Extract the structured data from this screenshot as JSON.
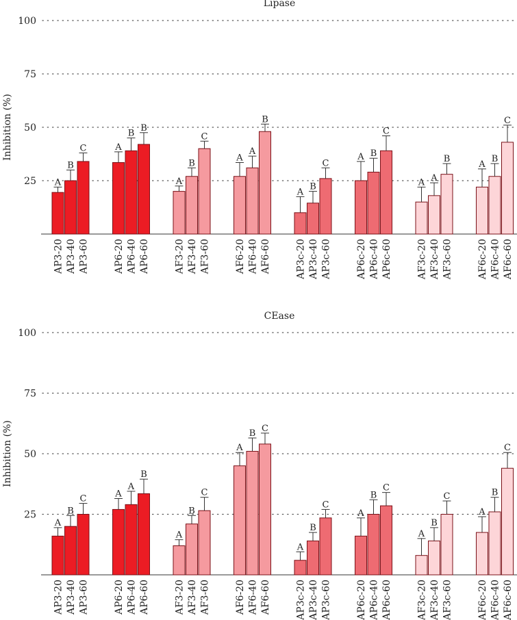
{
  "colors": {
    "g1": "#ec1c24",
    "g2": "#ec1c24",
    "g3": "#f59a9f",
    "g4": "#f59a9f",
    "g5": "#ee6b72",
    "g6": "#ee6b72",
    "g7": "#fdd5d8",
    "g8": "#fdd5d8",
    "edge": "#7a1017",
    "grid": "#555555"
  },
  "chart_data": [
    {
      "type": "bar",
      "title": "Lipase",
      "ylabel": "Inhibition (%)",
      "ylim": [
        0,
        100
      ],
      "yticks": [
        25,
        50,
        75,
        100
      ],
      "groups": [
        "AP3",
        "AP6",
        "AF3",
        "AF6",
        "AP3c",
        "AP6c",
        "AF3c",
        "AF6c"
      ],
      "categories": [
        "AP3-20",
        "AP3-40",
        "AP3-60",
        "AP6-20",
        "AP6-40",
        "AP6-60",
        "AF3-20",
        "AF3-40",
        "AF3-60",
        "AF6-20",
        "AF6-40",
        "AF6-60",
        "AP3c-20",
        "AP3c-40",
        "AP3c-60",
        "AP6c-20",
        "AP6c-40",
        "AP6c-60",
        "AF3c-20",
        "AF3c-40",
        "AF3c-60",
        "AF6c-20",
        "AF6c-40",
        "AF6c-60"
      ],
      "values": [
        19.5,
        25,
        34,
        33.5,
        39,
        42,
        20,
        27,
        40,
        27,
        31,
        48,
        10,
        14.5,
        26,
        25,
        29,
        39,
        15,
        18,
        28,
        22,
        27,
        43
      ],
      "errors": [
        2.5,
        5,
        4,
        5,
        6,
        5.5,
        2.5,
        4,
        3.5,
        6.5,
        5.5,
        3.5,
        7.5,
        5.5,
        5,
        9,
        6.5,
        7,
        7,
        6,
        5,
        8.5,
        6,
        8
      ],
      "letters": [
        "A",
        "B",
        "C",
        "A",
        "B",
        "B",
        "A",
        "B",
        "C",
        "A",
        "A",
        "B",
        "A",
        "B",
        "C",
        "A",
        "B",
        "C",
        "A",
        "A",
        "B",
        "A",
        "B",
        "C"
      ]
    },
    {
      "type": "bar",
      "title": "CEase",
      "ylabel": "Inhibition (%)",
      "ylim": [
        0,
        100
      ],
      "yticks": [
        25,
        50,
        75,
        100
      ],
      "groups": [
        "AP3",
        "AP6",
        "AF3",
        "AF6",
        "AP3c",
        "AP6c",
        "AF3c",
        "AF6c"
      ],
      "categories": [
        "AP3-20",
        "AP3-40",
        "AP3-60",
        "AP6-20",
        "AP6-40",
        "AP6-60",
        "AF3-20",
        "AF3-40",
        "AF3-60",
        "AF6-20",
        "AF6-40",
        "AF6-60",
        "AP3c-20",
        "AP3c-40",
        "AP3c-60",
        "AP6c-20",
        "AP6c-40",
        "AP6c-60",
        "AF3c-20",
        "AF3c-40",
        "AF3c-60",
        "AF6c-20",
        "AF6c-40",
        "AF6c-60"
      ],
      "values": [
        16,
        20,
        25,
        27,
        29,
        33.5,
        12,
        21,
        26.5,
        45,
        51,
        54,
        6,
        14,
        23.5,
        16,
        25,
        28.5,
        8,
        14,
        25,
        17.5,
        26,
        44
      ],
      "errors": [
        3.5,
        4.5,
        4.5,
        4.5,
        5.5,
        6,
        2.5,
        3.5,
        5.5,
        5.5,
        5.5,
        4.5,
        3.5,
        3.5,
        3.5,
        7.5,
        6,
        5.5,
        7,
        5.5,
        5.5,
        6.5,
        6,
        6.5
      ],
      "letters": [
        "A",
        "B",
        "C",
        "A",
        "A",
        "B",
        "A",
        "B",
        "C",
        "A",
        "B",
        "C",
        "A",
        "B",
        "C",
        "A",
        "B",
        "C",
        "A",
        "B",
        "C",
        "A",
        "B",
        "C"
      ]
    }
  ]
}
